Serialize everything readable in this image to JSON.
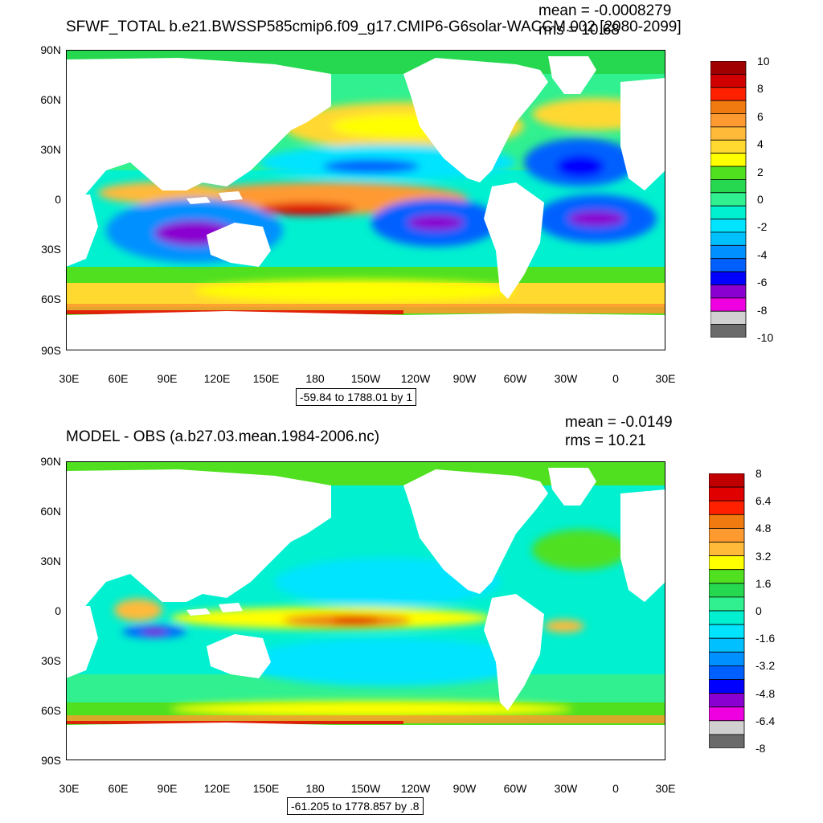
{
  "panels": [
    {
      "title": "SFWF_TOTAL b.e21.BWSSP585cmip6.f09_g17.CMIP6-G6solar-WACCM.002 [2080-2099]",
      "mean_text": "mean = -0.0008279",
      "rms_text": "rms = 10.68",
      "range_text": "-59.84 to 1788.01 by 1",
      "x_ticks": [
        "30E",
        "60E",
        "90E",
        "120E",
        "150E",
        "180",
        "150W",
        "120W",
        "90W",
        "60W",
        "30W",
        "0",
        "30E"
      ],
      "y_ticks": [
        "90N",
        "60N",
        "30N",
        "0",
        "30S",
        "60S",
        "90S"
      ],
      "colorbar_labels": [
        "10",
        "8",
        "6",
        "4",
        "2",
        "0",
        "-2",
        "-4",
        "-6",
        "-8",
        "-10"
      ],
      "colorbar_colors": [
        "#a00000",
        "#d00000",
        "#ff2000",
        "#f07a10",
        "#ff9a30",
        "#ffba3a",
        "#ffd830",
        "#ffff00",
        "#50e020",
        "#26d850",
        "#30f090",
        "#00f0d0",
        "#00e4ff",
        "#00c0ff",
        "#0090ff",
        "#0060ff",
        "#0000ff",
        "#8a00d0",
        "#ee00e0",
        "#d0d0d0",
        "#6a6a6a"
      ]
    },
    {
      "title": "MODEL - OBS (a.b27.03.mean.1984-2006.nc)",
      "mean_text": "mean = -0.0149",
      "rms_text": "rms = 10.21",
      "range_text": "-61.205 to 1778.857 by .8",
      "x_ticks": [
        "30E",
        "60E",
        "90E",
        "120E",
        "150E",
        "180",
        "150W",
        "120W",
        "90W",
        "60W",
        "30W",
        "0",
        "30E"
      ],
      "y_ticks": [
        "90N",
        "60N",
        "30N",
        "0",
        "30S",
        "60S",
        "90S"
      ],
      "colorbar_labels": [
        "8",
        "6.4",
        "4.8",
        "3.2",
        "1.6",
        "0",
        "-1.6",
        "-3.2",
        "-4.8",
        "-6.4",
        "-8"
      ],
      "colorbar_colors": [
        "#c00000",
        "#e00000",
        "#ff2000",
        "#f07a10",
        "#ff9a30",
        "#ffba3a",
        "#ffff00",
        "#50e020",
        "#26d850",
        "#30f090",
        "#00f0d0",
        "#00e4ff",
        "#00c0ff",
        "#0090ff",
        "#0060ff",
        "#0000ff",
        "#8a00d0",
        "#ee00e0",
        "#d0d0d0",
        "#6a6a6a"
      ]
    }
  ]
}
